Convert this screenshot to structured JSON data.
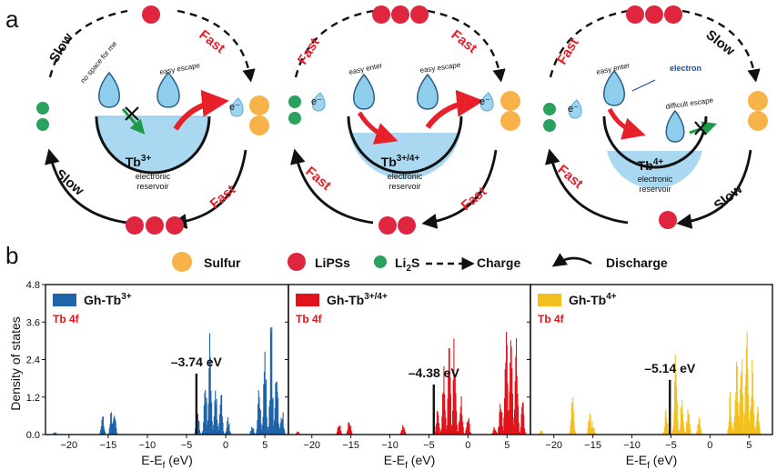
{
  "panel_a": {
    "label": "a",
    "cycles": [
      {
        "title": "Tb",
        "sup": "3+",
        "sub1": "electronic",
        "sub2": "reservoir",
        "top_left": "Slow",
        "top_right": "Fast",
        "bottom_left": "Slow",
        "bottom_right": "Fast",
        "drop1_text": "no space for me",
        "drop2_text": "easy escape",
        "electron": "e⁻",
        "fill_level": 0.93
      },
      {
        "title": "Tb",
        "sup": "3+/4+",
        "sub1": "electronic",
        "sub2": "reservoir",
        "top_left": "Fast",
        "top_right": "Fast",
        "bottom_left": "Fast",
        "bottom_right": "Fast",
        "drop1_text": "easy enter",
        "drop2_text": "easy escape",
        "electron_left": "e⁻",
        "electron_right": "e⁻",
        "fill_level": 0.75
      },
      {
        "title": "Tb",
        "sup": "4+",
        "sub1": "electronic",
        "sub2": "reservoir",
        "top_left": "Fast",
        "top_right": "Slow",
        "bottom_left": "Fast",
        "bottom_right": "Slow",
        "drop1_text": "easy enter",
        "drop2_text": "difficult escape",
        "electron_label": "electron",
        "electron": "e⁻",
        "fill_level": 0.45
      }
    ],
    "legend": {
      "sulfur": "Sulfur",
      "lipss": "LiPSs",
      "li2s_main": "Li",
      "li2s_sub": "2",
      "li2s_end": "S",
      "charge": "Charge",
      "discharge": "Discharge"
    },
    "colors": {
      "sulfur": "#F7B24A",
      "lipss": "#E0253F",
      "li2s": "#2BA15E",
      "reservoir": "#A9D8F0",
      "fast": "#E8202A",
      "slow": "#111111"
    }
  },
  "panel_b": {
    "label": "b",
    "ylabel": "Density of states",
    "xlabel_main": "E-E",
    "xlabel_sub": "f",
    "xlabel_unit": " (eV)"
  },
  "chart_data": [
    {
      "type": "bar",
      "legend_main": "Gh-Tb",
      "legend_sup": "3+",
      "sublabel": "Tb 4f",
      "color": "#1F63A8",
      "annotation": "–3.74 eV",
      "marker_x": -3.74,
      "marker_y": 1.95,
      "xlim": [
        -23,
        8
      ],
      "ylim": [
        0,
        4.8
      ],
      "xticks": [
        -20,
        -15,
        -10,
        -5,
        0,
        5
      ],
      "xtick_labels": [
        "−20",
        "−15",
        "−10",
        "−5",
        "0",
        "5"
      ],
      "yticks": [
        0.0,
        1.2,
        2.4,
        3.6,
        4.8
      ],
      "ytick_labels": [
        "0.0",
        "1.2",
        "2.4",
        "3.6",
        "4.8"
      ],
      "peaks": [
        [
          -21.8,
          0.1
        ],
        [
          -15.7,
          0.7
        ],
        [
          -14.6,
          0.8
        ],
        [
          -14.2,
          0.75
        ],
        [
          -3.6,
          1.0
        ],
        [
          -2.6,
          2.1
        ],
        [
          -2.0,
          3.5
        ],
        [
          -1.3,
          1.8
        ],
        [
          -0.6,
          1.5
        ],
        [
          0.3,
          0.6
        ],
        [
          3.4,
          0.35
        ],
        [
          4.3,
          2.0
        ],
        [
          5.0,
          3.2
        ],
        [
          5.8,
          4.1
        ],
        [
          6.5,
          3.0
        ],
        [
          7.2,
          1.0
        ]
      ]
    },
    {
      "type": "bar",
      "legend_main": "Gh-Tb",
      "legend_sup": "3+/4+",
      "sublabel": "Tb 4f",
      "color": "#E1141B",
      "annotation": "–4.38 eV",
      "marker_x": -4.38,
      "marker_y": 1.6,
      "xlim": [
        -23,
        8
      ],
      "ylim": [
        0,
        4.8
      ],
      "xticks": [
        -20,
        -15,
        -10,
        -5,
        0,
        5
      ],
      "xtick_labels": [
        "−20",
        "−15",
        "−10",
        "−5",
        "0",
        "5"
      ],
      "yticks": [
        0.0,
        1.2,
        2.4,
        3.6,
        4.8
      ],
      "peaks": [
        [
          -21.8,
          0.1
        ],
        [
          -16.5,
          0.45
        ],
        [
          -15.2,
          0.6
        ],
        [
          -8.3,
          0.4
        ],
        [
          -3.9,
          1.0
        ],
        [
          -3.1,
          2.6
        ],
        [
          -2.4,
          3.0
        ],
        [
          -1.7,
          4.0
        ],
        [
          -0.9,
          1.6
        ],
        [
          0.0,
          0.8
        ],
        [
          3.4,
          0.35
        ],
        [
          4.2,
          1.8
        ],
        [
          4.9,
          3.6
        ],
        [
          5.5,
          4.2
        ],
        [
          6.2,
          3.1
        ],
        [
          7.0,
          1.2
        ]
      ]
    },
    {
      "type": "bar",
      "legend_main": "Gh-Tb",
      "legend_sup": "4+",
      "sublabel": "Tb 4f",
      "color": "#F4C021",
      "annotation": "–5.14 eV",
      "marker_x": -5.14,
      "marker_y": 1.75,
      "xlim": [
        -23,
        8
      ],
      "ylim": [
        0,
        4.8
      ],
      "xticks": [
        -20,
        -15,
        -10,
        -5,
        0,
        5
      ],
      "xtick_labels": [
        "−20",
        "−15",
        "−10",
        "−5",
        "0",
        "5"
      ],
      "yticks": [
        0.0,
        1.2,
        2.4,
        3.6,
        4.8
      ],
      "peaks": [
        [
          -21.6,
          0.15
        ],
        [
          -17.6,
          1.5
        ],
        [
          -15.4,
          0.8
        ],
        [
          -15.0,
          0.5
        ],
        [
          -5.6,
          1.0
        ],
        [
          -4.4,
          2.7
        ],
        [
          -3.6,
          1.5
        ],
        [
          -2.8,
          1.0
        ],
        [
          -1.4,
          0.6
        ],
        [
          2.6,
          1.4
        ],
        [
          3.4,
          3.3
        ],
        [
          4.0,
          4.1
        ],
        [
          4.7,
          3.6
        ],
        [
          5.4,
          2.8
        ],
        [
          6.1,
          1.4
        ]
      ]
    }
  ]
}
